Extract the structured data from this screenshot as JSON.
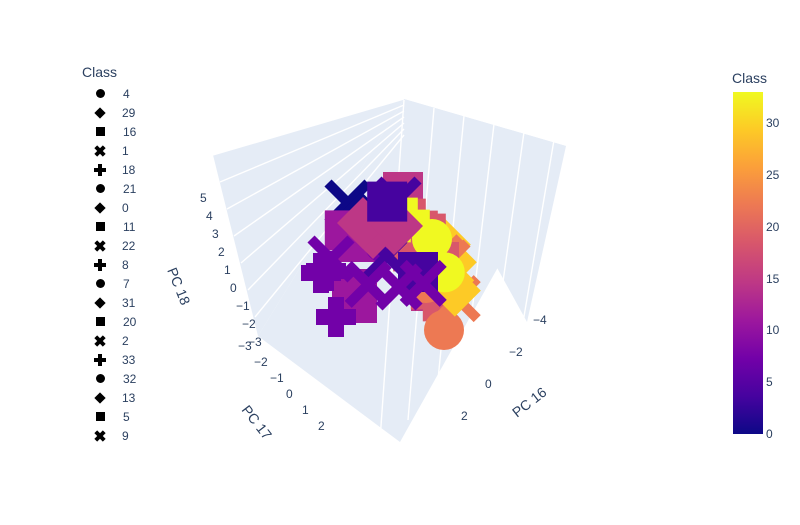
{
  "legend": {
    "title": "Class",
    "items": [
      {
        "label": "4",
        "symbol": "circle"
      },
      {
        "label": "29",
        "symbol": "diamond"
      },
      {
        "label": "16",
        "symbol": "square"
      },
      {
        "label": "1",
        "symbol": "x"
      },
      {
        "label": "18",
        "symbol": "cross"
      },
      {
        "label": "21",
        "symbol": "circle"
      },
      {
        "label": "0",
        "symbol": "diamond"
      },
      {
        "label": "11",
        "symbol": "square"
      },
      {
        "label": "22",
        "symbol": "x"
      },
      {
        "label": "8",
        "symbol": "cross"
      },
      {
        "label": "7",
        "symbol": "circle"
      },
      {
        "label": "31",
        "symbol": "diamond"
      },
      {
        "label": "20",
        "symbol": "square"
      },
      {
        "label": "2",
        "symbol": "x"
      },
      {
        "label": "33",
        "symbol": "cross"
      },
      {
        "label": "32",
        "symbol": "circle"
      },
      {
        "label": "13",
        "symbol": "diamond"
      },
      {
        "label": "5",
        "symbol": "square"
      },
      {
        "label": "9",
        "symbol": "x"
      }
    ]
  },
  "colorbar": {
    "title": "Class",
    "ticks": [
      "30",
      "25",
      "20",
      "15",
      "10",
      "5",
      "0"
    ],
    "range": [
      0,
      33
    ],
    "colorscale": "plasma"
  },
  "chart_data": {
    "type": "scatter",
    "mode": "3d",
    "xlabel": "PC 16",
    "ylabel": "PC 17",
    "zlabel": "PC 18",
    "x_ticks": [
      "−4",
      "−2",
      "0",
      "2"
    ],
    "y_ticks": [
      "−3",
      "−2",
      "−1",
      "0",
      "1",
      "2"
    ],
    "z_ticks": [
      "−3",
      "−2",
      "−1",
      "0",
      "1",
      "2",
      "3",
      "4",
      "5"
    ],
    "grid": true,
    "legend_position": "left",
    "series": [
      {
        "name": "4",
        "class": 4,
        "points": [
          [
            1.5,
            -1.8,
            -0.5
          ],
          [
            2.0,
            -1.0,
            -1.0
          ],
          [
            1.0,
            -2.2,
            0.0
          ]
        ]
      },
      {
        "name": "29",
        "class": 29,
        "points": [
          [
            2.5,
            0.2,
            -1.2
          ],
          [
            3.0,
            -0.3,
            -1.5
          ],
          [
            2.2,
            0.6,
            -0.8
          ],
          [
            2.8,
            0.0,
            -1.0
          ]
        ]
      },
      {
        "name": "16",
        "class": 16,
        "points": [
          [
            0.2,
            0.8,
            2.2
          ],
          [
            0.5,
            0.3,
            1.5
          ],
          [
            -0.5,
            1.5,
            1.0
          ],
          [
            1.0,
            -0.5,
            2.8
          ]
        ]
      },
      {
        "name": "1",
        "class": 1,
        "points": [
          [
            0.8,
            -1.5,
            0.5
          ],
          [
            0.0,
            -2.0,
            1.8
          ],
          [
            1.8,
            -0.8,
            -0.2
          ]
        ]
      },
      {
        "name": "18",
        "class": 18,
        "points": [
          [
            -0.5,
            1.2,
            2.5
          ],
          [
            0.3,
            0.5,
            3.0
          ],
          [
            -1.0,
            1.8,
            1.2
          ]
        ]
      },
      {
        "name": "21",
        "class": 21,
        "points": [
          [
            0.0,
            1.0,
            0.5
          ],
          [
            1.0,
            0.0,
            1.0
          ],
          [
            -0.5,
            2.0,
            -0.5
          ]
        ]
      },
      {
        "name": "0",
        "class": 0,
        "points": [
          [
            1.2,
            -1.0,
            0.0
          ],
          [
            0.5,
            -1.8,
            0.8
          ]
        ]
      },
      {
        "name": "11",
        "class": 11,
        "points": [
          [
            -1.5,
            -1.2,
            2.5
          ],
          [
            -2.0,
            -0.5,
            3.0
          ],
          [
            -3.0,
            0.0,
            2.0
          ],
          [
            -3.5,
            0.5,
            2.2
          ]
        ]
      },
      {
        "name": "22",
        "class": 22,
        "points": [
          [
            0.5,
            1.5,
            1.5
          ],
          [
            1.2,
            0.8,
            0.5
          ],
          [
            0.0,
            2.2,
            0.8
          ]
        ]
      },
      {
        "name": "8",
        "class": 8,
        "points": [
          [
            -3.0,
            -1.0,
            2.0
          ],
          [
            -2.5,
            -1.5,
            1.0
          ],
          [
            -4.0,
            0.0,
            1.5
          ]
        ]
      },
      {
        "name": "7",
        "class": 7,
        "points": [
          [
            -0.5,
            -0.5,
            2.0
          ],
          [
            -1.0,
            0.0,
            2.5
          ]
        ]
      },
      {
        "name": "31",
        "class": 31,
        "points": [
          [
            1.8,
            1.0,
            -1.5
          ],
          [
            2.2,
            0.5,
            -1.8
          ]
        ]
      },
      {
        "name": "20",
        "class": 20,
        "points": [
          [
            0.8,
            0.5,
            1.8
          ],
          [
            0.0,
            1.5,
            2.0
          ],
          [
            -0.8,
            1.0,
            2.8
          ]
        ]
      },
      {
        "name": "2",
        "class": 2,
        "points": [
          [
            0.0,
            -0.5,
            0.5
          ],
          [
            1.5,
            -1.0,
            1.5
          ]
        ]
      },
      {
        "name": "33",
        "class": 33,
        "points": [
          [
            -0.2,
            0.5,
            3.5
          ],
          [
            0.5,
            -0.2,
            2.0
          ]
        ]
      },
      {
        "name": "32",
        "class": 32,
        "points": [
          [
            1.5,
            0.8,
            -0.5
          ],
          [
            2.0,
            0.0,
            0.0
          ]
        ]
      },
      {
        "name": "13",
        "class": 13,
        "points": [
          [
            -2.0,
            1.0,
            5.0
          ],
          [
            -2.5,
            0.5,
            4.8
          ],
          [
            -1.5,
            -0.5,
            3.5
          ],
          [
            -1.0,
            0.5,
            3.8
          ]
        ]
      },
      {
        "name": "5",
        "class": 5,
        "points": [
          [
            -0.5,
            1.0,
            1.5
          ],
          [
            0.5,
            -0.8,
            2.5
          ]
        ]
      },
      {
        "name": "9",
        "class": 9,
        "points": [
          [
            -2.5,
            1.5,
            3.0
          ],
          [
            -3.5,
            -0.5,
            3.5
          ],
          [
            -2.8,
            0.5,
            2.5
          ],
          [
            -1.8,
            2.0,
            3.0
          ]
        ]
      }
    ]
  }
}
